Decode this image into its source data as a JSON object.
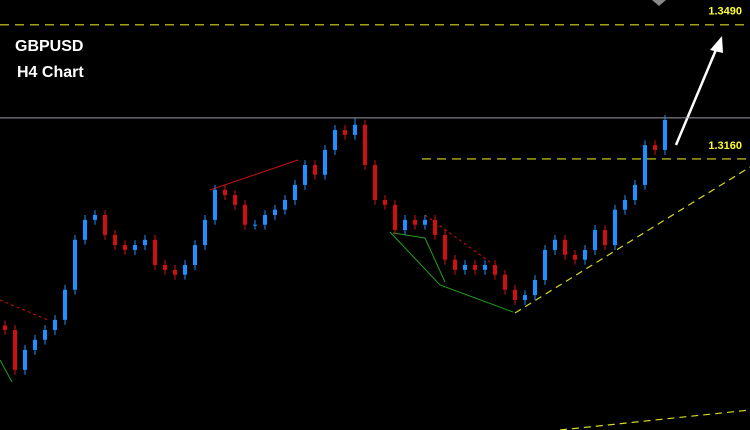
{
  "chart_data": {
    "type": "candlestick",
    "title": "GBPUSD",
    "subtitle": "H4 Chart",
    "up_color": "#1e90ff",
    "down_color": "#d01010",
    "ylim": [
      1.2493,
      1.3551
    ],
    "open": [
      1.275,
      1.2739,
      1.2641,
      1.269,
      1.2715,
      1.2739,
      1.2764,
      1.2838,
      1.2961,
      1.301,
      1.3022,
      1.2973,
      1.2948,
      1.2936,
      1.2948,
      1.2961,
      1.2899,
      1.2887,
      1.2875,
      1.2899,
      1.2948,
      1.301,
      1.3084,
      1.3071,
      1.3047,
      1.2998,
      1.2998,
      1.3022,
      1.3035,
      1.3059,
      1.3096,
      1.3145,
      1.3121,
      1.3182,
      1.3231,
      1.3219,
      1.3244,
      1.3145,
      1.3059,
      1.3047,
      1.2985,
      1.301,
      1.2998,
      1.301,
      1.2973,
      1.2912,
      1.2887,
      1.2899,
      1.2887,
      1.2899,
      1.2875,
      1.2838,
      1.2813,
      1.2825,
      1.2862,
      1.2936,
      1.2961,
      1.2924,
      1.2912,
      1.2936,
      1.2985,
      1.2948,
      1.3035,
      1.3059,
      1.3096,
      1.3194,
      1.3182
    ],
    "high": [
      1.2762,
      1.2751,
      1.2702,
      1.2727,
      1.2751,
      1.2776,
      1.285,
      1.2973,
      1.3022,
      1.3034,
      1.3034,
      1.2985,
      1.296,
      1.296,
      1.2973,
      1.2973,
      1.2911,
      1.2899,
      1.2911,
      1.296,
      1.3022,
      1.3096,
      1.3096,
      1.3083,
      1.3059,
      1.301,
      1.3034,
      1.3047,
      1.3071,
      1.3108,
      1.3157,
      1.3157,
      1.3194,
      1.3243,
      1.3243,
      1.326,
      1.3256,
      1.3157,
      1.3071,
      1.3059,
      1.3022,
      1.3022,
      1.3022,
      1.3022,
      1.2985,
      1.2924,
      1.2911,
      1.2911,
      1.2911,
      1.2911,
      1.2887,
      1.285,
      1.2837,
      1.2874,
      1.2948,
      1.2973,
      1.2973,
      1.2936,
      1.2948,
      1.2997,
      1.2997,
      1.3047,
      1.3071,
      1.3108,
      1.3206,
      1.3206,
      1.3268
    ],
    "low": [
      1.2727,
      1.2629,
      1.2629,
      1.2678,
      1.2703,
      1.2727,
      1.2752,
      1.2826,
      1.2949,
      1.2998,
      1.2961,
      1.2936,
      1.2924,
      1.2924,
      1.2936,
      1.2887,
      1.2875,
      1.2863,
      1.2863,
      1.2887,
      1.2936,
      1.2998,
      1.3059,
      1.3035,
      1.2986,
      1.2986,
      1.2986,
      1.301,
      1.3023,
      1.3047,
      1.3084,
      1.3109,
      1.3109,
      1.317,
      1.3207,
      1.3207,
      1.3133,
      1.3047,
      1.3035,
      1.2973,
      1.2973,
      1.2986,
      1.2986,
      1.2961,
      1.29,
      1.2875,
      1.2875,
      1.2875,
      1.2875,
      1.2863,
      1.2826,
      1.2801,
      1.2801,
      1.2813,
      1.285,
      1.2924,
      1.2912,
      1.29,
      1.29,
      1.2924,
      1.2936,
      1.2936,
      1.3023,
      1.3047,
      1.3084,
      1.317,
      1.317
    ],
    "close": [
      1.2739,
      1.2641,
      1.269,
      1.2715,
      1.2739,
      1.2764,
      1.2838,
      1.2961,
      1.301,
      1.3022,
      1.2973,
      1.2948,
      1.2936,
      1.2948,
      1.2961,
      1.2899,
      1.2887,
      1.2875,
      1.2899,
      1.2948,
      1.301,
      1.3084,
      1.3071,
      1.3047,
      1.2998,
      1.2998,
      1.3022,
      1.3035,
      1.3059,
      1.3096,
      1.3145,
      1.3121,
      1.3182,
      1.3231,
      1.3219,
      1.3244,
      1.3145,
      1.3059,
      1.3047,
      1.2985,
      1.301,
      1.2998,
      1.301,
      1.2973,
      1.2912,
      1.2887,
      1.2899,
      1.2887,
      1.2899,
      1.2875,
      1.2838,
      1.2813,
      1.2825,
      1.2862,
      1.2936,
      1.2961,
      1.2924,
      1.2912,
      1.2936,
      1.2985,
      1.2948,
      1.3035,
      1.3059,
      1.3096,
      1.3194,
      1.3182,
      1.3256
    ],
    "resistance_line": 1.3261,
    "levels": [
      {
        "value": 1.349,
        "label": "1.3490"
      },
      {
        "value": 1.316,
        "label": "1.3160"
      }
    ]
  }
}
